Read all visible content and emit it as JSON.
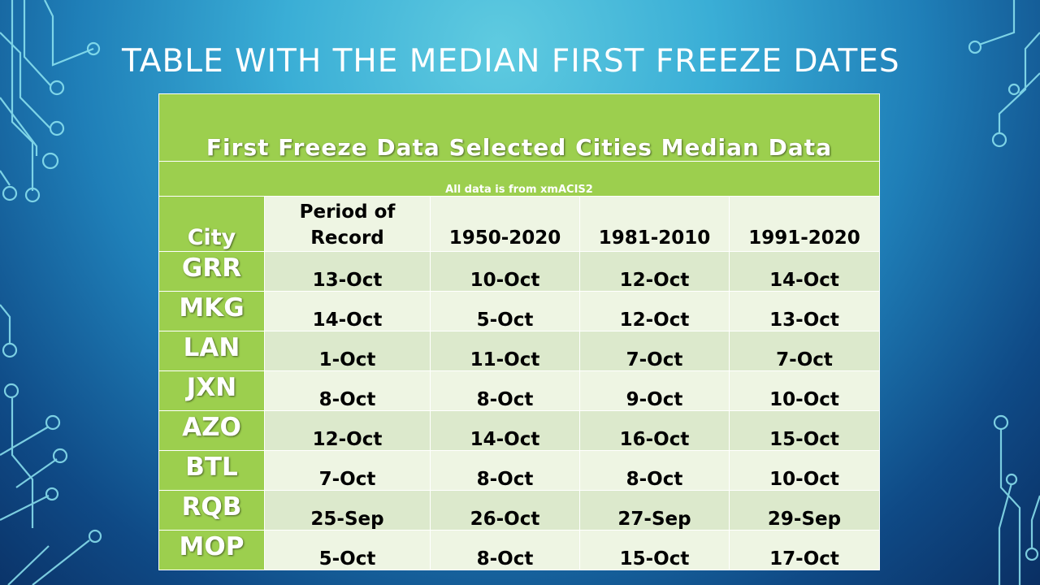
{
  "slide": {
    "title": "TABLE WITH THE MEDIAN FIRST FREEZE DATES"
  },
  "table": {
    "header": "First Freeze Data Selected Cities Median Data",
    "source": "All data is from xmACIS2",
    "columns": {
      "city": "City",
      "period_of_record": "Period of Record",
      "c1950_2020": "1950-2020",
      "c1981_2010": "1981-2010",
      "c1991_2020": "1991-2020"
    },
    "rows": [
      {
        "city": "GRR",
        "period_of_record": "13-Oct",
        "c1950_2020": "10-Oct",
        "c1981_2010": "12-Oct",
        "c1991_2020": "14-Oct"
      },
      {
        "city": "MKG",
        "period_of_record": "14-Oct",
        "c1950_2020": "5-Oct",
        "c1981_2010": "12-Oct",
        "c1991_2020": "13-Oct"
      },
      {
        "city": "LAN",
        "period_of_record": "1-Oct",
        "c1950_2020": "11-Oct",
        "c1981_2010": "7-Oct",
        "c1991_2020": "7-Oct"
      },
      {
        "city": "JXN",
        "period_of_record": "8-Oct",
        "c1950_2020": "8-Oct",
        "c1981_2010": "9-Oct",
        "c1991_2020": "10-Oct"
      },
      {
        "city": "AZO",
        "period_of_record": "12-Oct",
        "c1950_2020": "14-Oct",
        "c1981_2010": "16-Oct",
        "c1991_2020": "15-Oct"
      },
      {
        "city": "BTL",
        "period_of_record": "7-Oct",
        "c1950_2020": "8-Oct",
        "c1981_2010": "8-Oct",
        "c1991_2020": "10-Oct"
      },
      {
        "city": "RQB",
        "period_of_record": "25-Sep",
        "c1950_2020": "26-Oct",
        "c1981_2010": "27-Sep",
        "c1991_2020": "29-Sep"
      },
      {
        "city": "MOP",
        "period_of_record": "5-Oct",
        "c1950_2020": "8-Oct",
        "c1981_2010": "15-Oct",
        "c1991_2020": "17-Oct"
      }
    ]
  },
  "colors": {
    "header_green": "#9ccf4e",
    "row_light": "#eef5e3",
    "row_dark": "#dce9cc",
    "circuit_stroke": "#8fe6f2"
  }
}
